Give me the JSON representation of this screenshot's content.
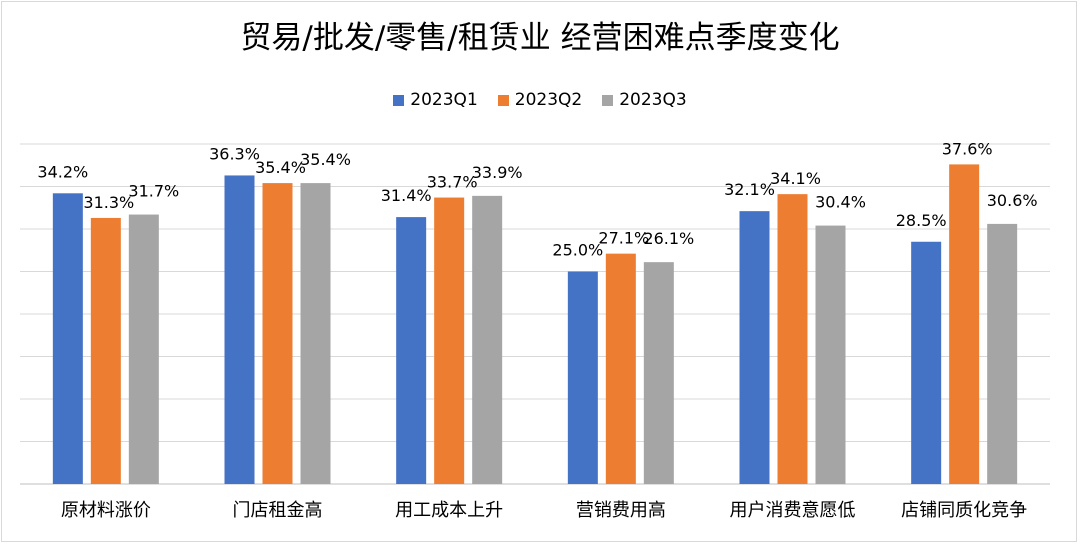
{
  "chart_data": {
    "type": "bar",
    "title": "贸易/批发/零售/租赁业 经营困难点季度变化",
    "categories": [
      "原材料涨价",
      "门店租金高",
      "用工成本上升",
      "营销费用高",
      "用户消费意愿低",
      "店铺同质化竞争"
    ],
    "series": [
      {
        "name": "2023Q1",
        "color": "#4472c4",
        "values": [
          34.2,
          36.3,
          31.4,
          25.0,
          32.1,
          28.5
        ],
        "labels": [
          "34.2%",
          "36.3%",
          "31.4%",
          "25.0%",
          "32.1%",
          "28.5%"
        ]
      },
      {
        "name": "2023Q2",
        "color": "#ed7d31",
        "values": [
          31.3,
          35.4,
          33.7,
          27.1,
          34.1,
          37.6
        ],
        "labels": [
          "31.3%",
          "35.4%",
          "33.7%",
          "27.1%",
          "34.1%",
          "37.6%"
        ]
      },
      {
        "name": "2023Q3",
        "color": "#a5a5a5",
        "values": [
          31.7,
          35.4,
          33.9,
          26.1,
          30.4,
          30.6
        ],
        "labels": [
          "31.7%",
          "35.4%",
          "33.9%",
          "26.1%",
          "30.4%",
          "30.6%"
        ]
      }
    ],
    "ylim": [
      0,
      40
    ],
    "gridlines": true,
    "legend_position": "top"
  }
}
